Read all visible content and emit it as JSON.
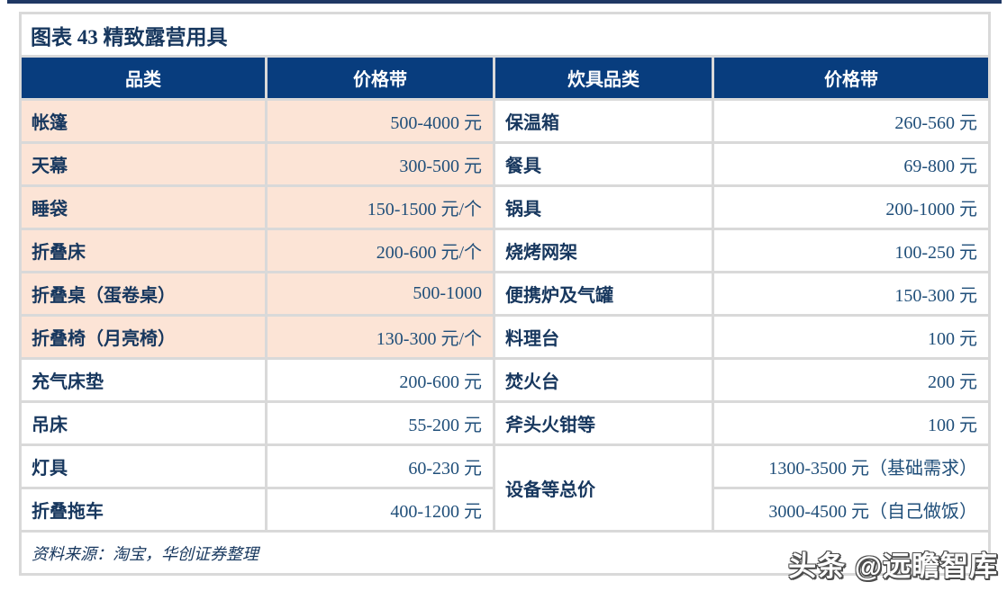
{
  "figure": {
    "title": "图表 43  精致露营用具",
    "source": "资料来源：淘宝，华创证券整理"
  },
  "table": {
    "headers": [
      "品类",
      "价格带",
      "炊具品类",
      "价格带"
    ],
    "left_rows": [
      {
        "category": "帐篷",
        "price": "500-4000 元"
      },
      {
        "category": "天幕",
        "price": "300-500 元"
      },
      {
        "category": "睡袋",
        "price": "150-1500 元/个"
      },
      {
        "category": "折叠床",
        "price": "200-600 元/个"
      },
      {
        "category": "折叠桌（蛋卷桌）",
        "price": "500-1000"
      },
      {
        "category": "折叠椅（月亮椅）",
        "price": "130-300 元/个"
      },
      {
        "category": "充气床垫",
        "price": "200-600 元"
      },
      {
        "category": "吊床",
        "price": "55-200 元"
      },
      {
        "category": "灯具",
        "price": "60-230 元"
      },
      {
        "category": "折叠拖车",
        "price": "400-1200 元"
      }
    ],
    "right_rows": [
      {
        "category": "保温箱",
        "price": "260-560 元"
      },
      {
        "category": "餐具",
        "price": "69-800 元"
      },
      {
        "category": "锅具",
        "price": "200-1000 元"
      },
      {
        "category": "烧烤网架",
        "price": "100-250 元"
      },
      {
        "category": "便携炉及气罐",
        "price": "150-300 元"
      },
      {
        "category": "料理台",
        "price": "100 元"
      },
      {
        "category": "焚火台",
        "price": "200 元"
      },
      {
        "category": "斧头火钳等",
        "price": "100 元"
      }
    ],
    "total": {
      "category": "设备等总价",
      "price_basic": "1300-3500 元（基础需求）",
      "price_cooking": "3000-4500 元（自己做饭）"
    }
  },
  "watermark": {
    "text": "头条 @远瞻智库"
  },
  "colors": {
    "header_bg": "#083D7E",
    "header_text": "#FFFFFF",
    "row_peach": "#FCE4D6",
    "grid_border": "#D9D9D9",
    "category_text": "#17375E",
    "price_text": "#1F4E79",
    "top_rule": "#1F3864",
    "watermark_outline": "#4D4D4D"
  }
}
